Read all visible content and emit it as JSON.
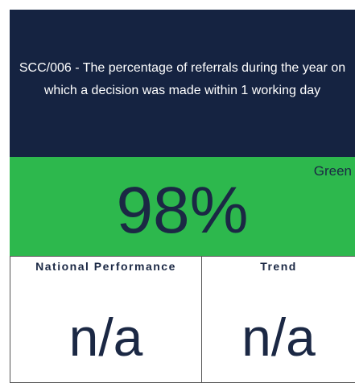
{
  "header": {
    "title": "SCC/006 - The percentage of referrals during the year on which a decision was made within 1 working day"
  },
  "status": {
    "label": "Green",
    "value": "98%"
  },
  "panels": [
    {
      "title": "National Performance",
      "value": "n/a"
    },
    {
      "title": "Trend",
      "value": "n/a"
    }
  ]
}
